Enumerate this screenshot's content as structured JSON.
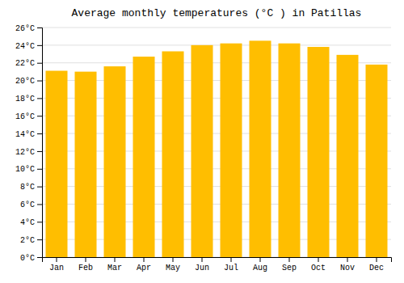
{
  "chart_data": {
    "type": "bar",
    "title": "Average monthly temperatures (°C ) in Patillas",
    "categories": [
      "Jan",
      "Feb",
      "Mar",
      "Apr",
      "May",
      "Jun",
      "Jul",
      "Aug",
      "Sep",
      "Oct",
      "Nov",
      "Dec"
    ],
    "values": [
      21.1,
      21.0,
      21.6,
      22.7,
      23.3,
      24.0,
      24.2,
      24.5,
      24.2,
      23.8,
      22.9,
      21.8
    ],
    "color": "#FFBE00",
    "ylim": [
      0,
      26
    ],
    "yticks": [
      {
        "value": 0,
        "label": "0°C"
      },
      {
        "value": 2,
        "label": "2°C"
      },
      {
        "value": 4,
        "label": "4°C"
      },
      {
        "value": 6,
        "label": "6°C"
      },
      {
        "value": 8,
        "label": "8°C"
      },
      {
        "value": 10,
        "label": "10°C"
      },
      {
        "value": 12,
        "label": "12°C"
      },
      {
        "value": 14,
        "label": "14°C"
      },
      {
        "value": 16,
        "label": "16°C"
      },
      {
        "value": 18,
        "label": "18°C"
      },
      {
        "value": 20,
        "label": "20°C"
      },
      {
        "value": 22,
        "label": "22°C"
      },
      {
        "value": 24,
        "label": "24°C"
      },
      {
        "value": 26,
        "label": "26°C"
      }
    ],
    "grid": true
  }
}
